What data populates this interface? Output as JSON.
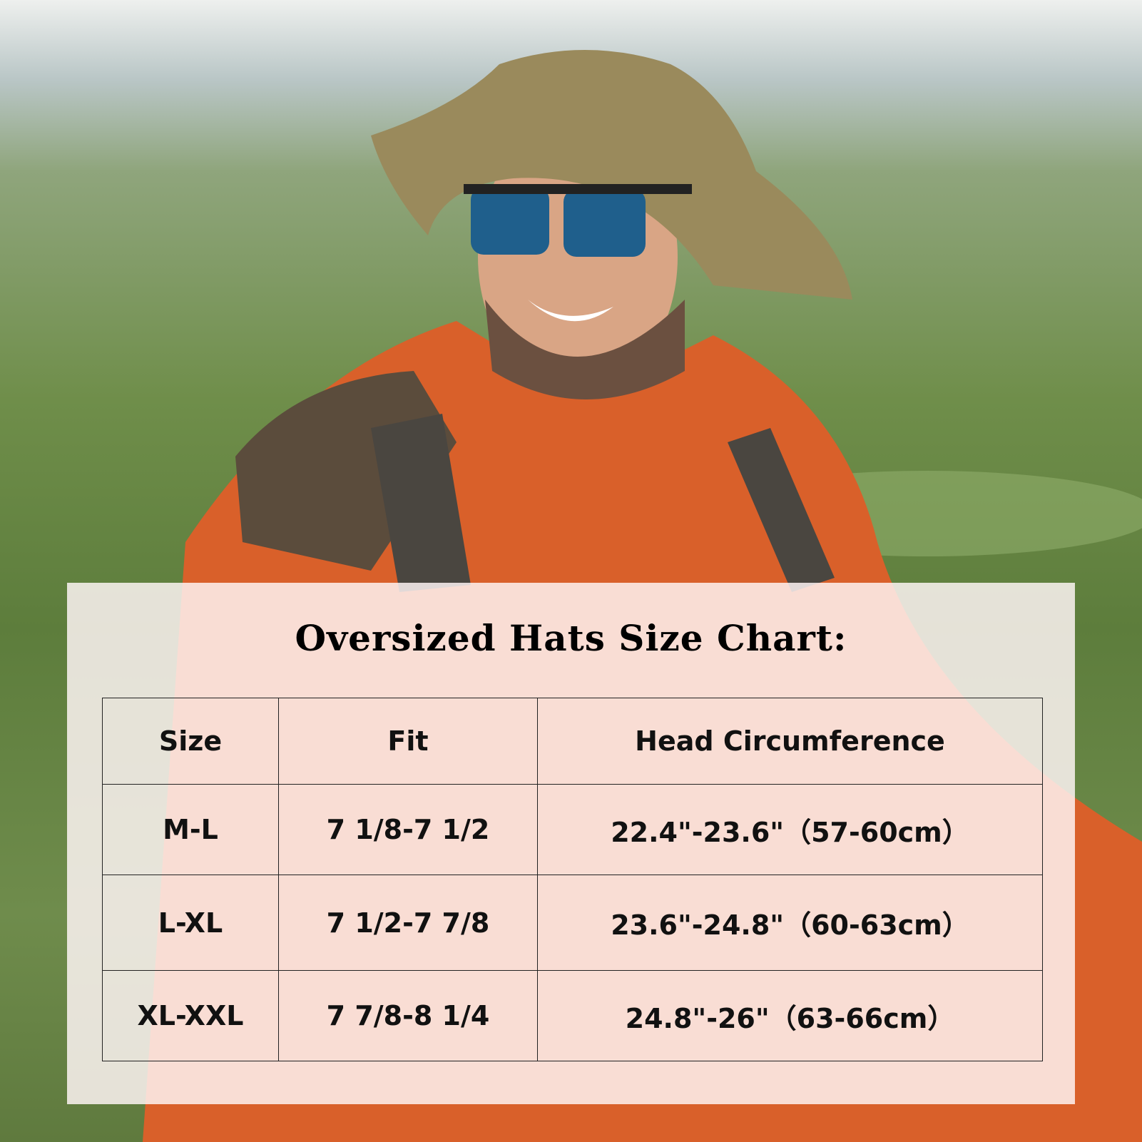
{
  "title": "Oversized Hats Size Chart:",
  "table": {
    "header": [
      "Size",
      "Fit",
      "Head Circumference"
    ],
    "rows": [
      [
        "M-L",
        "7 1/8-7 1/2",
        "22.4\"-23.6\"（57-60cm）"
      ],
      [
        "L-XL",
        "7 1/2-7 7/8",
        "23.6\"-24.8\"（60-63cm）"
      ],
      [
        "XL-XXL",
        "7 7/8-8 1/4",
        "24.8\"-26\"（63-66cm）"
      ]
    ]
  }
}
